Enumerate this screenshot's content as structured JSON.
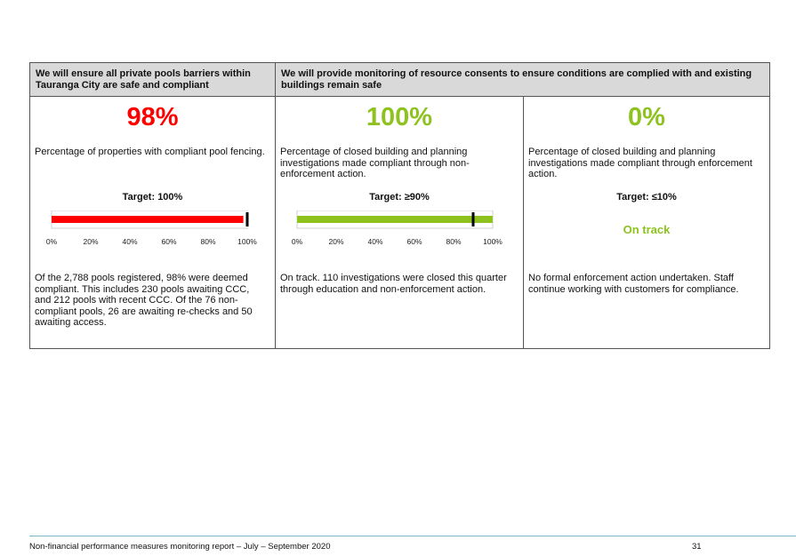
{
  "table": {
    "header_left": "We will ensure all private pools barriers within Tauranga City are safe and compliant",
    "header_right": "We will provide monitoring of resource consents to ensure conditions are complied with and existing buildings remain safe",
    "measures": [
      {
        "result": "98%",
        "result_color": "#ff0000",
        "description": "Percentage of properties with compliant pool fencing.",
        "target": "Target: 100%",
        "bar_color": "#ff0000",
        "comment": "Of the 2,788 pools registered, 98% were deemed compliant. This includes 230 pools awaiting CCC, and 212 pools with recent CCC. Of the 76 non-compliant pools, 26 are awaiting re-checks and 50 awaiting access."
      },
      {
        "result": "100%",
        "result_color": "#8dc21f",
        "description": "Percentage of closed building and planning investigations made compliant through non-enforcement action.",
        "target": "Target: ≥90%",
        "bar_color": "#8dc21f",
        "comment": "On track. 110 investigations were closed this quarter through education and non-enforcement action."
      },
      {
        "result": "0%",
        "result_color": "#8dc21f",
        "description": "Percentage of closed building and planning investigations made compliant through enforcement action.",
        "target": "Target: ≤10%",
        "status": "On track",
        "status_color": "#8dc21f",
        "comment": "No formal enforcement action undertaken. Staff continue working with customers for compliance."
      }
    ]
  },
  "chart_data": [
    {
      "type": "bar",
      "orientation": "horizontal",
      "values": [
        98
      ],
      "target_marker": 100,
      "xlim": [
        0,
        100
      ],
      "ticks": [
        "0%",
        "20%",
        "40%",
        "60%",
        "80%",
        "100%"
      ],
      "color": "#ff0000"
    },
    {
      "type": "bar",
      "orientation": "horizontal",
      "values": [
        100
      ],
      "target_marker": 90,
      "xlim": [
        0,
        100
      ],
      "ticks": [
        "0%",
        "20%",
        "40%",
        "60%",
        "80%",
        "100%"
      ],
      "color": "#8dc21f"
    }
  ],
  "footer": {
    "report_title": "Non-financial performance measures monitoring report – July – September 2020",
    "page_number": "31"
  }
}
